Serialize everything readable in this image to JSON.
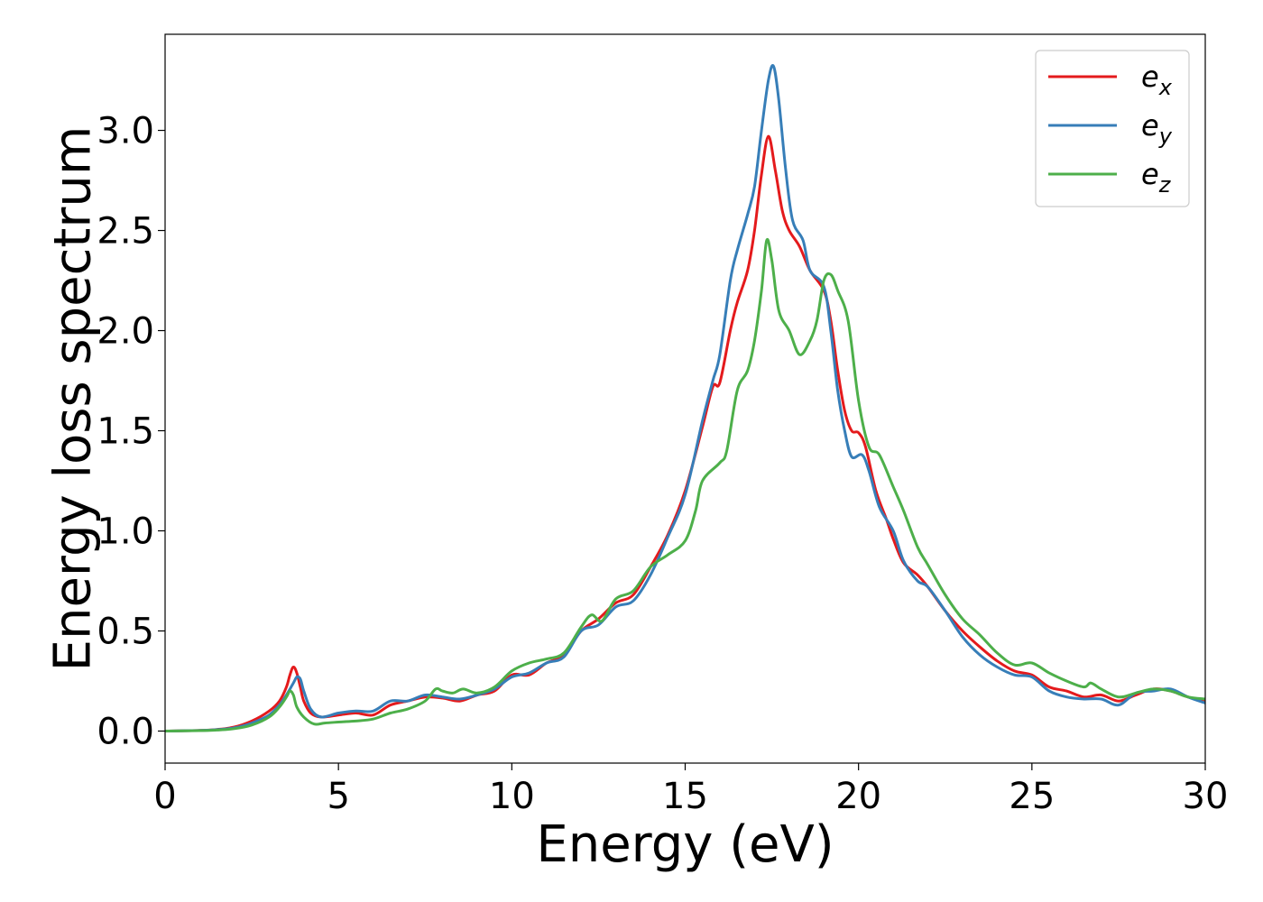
{
  "chart_data": {
    "type": "line",
    "title": "",
    "xlabel": "Energy (eV)",
    "ylabel": "Energy loss spectrum",
    "xlim": [
      0,
      30
    ],
    "ylim": [
      -0.16,
      3.48
    ],
    "xticks": [
      0,
      5,
      10,
      15,
      20,
      25,
      30
    ],
    "xtick_labels": [
      "0",
      "5",
      "10",
      "15",
      "20",
      "25",
      "30"
    ],
    "yticks": [
      0.0,
      0.5,
      1.0,
      1.5,
      2.0,
      2.5,
      3.0
    ],
    "ytick_labels": [
      "0.0",
      "0.5",
      "1.0",
      "1.5",
      "2.0",
      "2.5",
      "3.0"
    ],
    "grid": false,
    "legend_position": "top-right",
    "series": [
      {
        "name": "e_x",
        "base": "e",
        "sub": "x",
        "color": "#e41a1c",
        "points": [
          [
            0,
            0
          ],
          [
            1,
            0.003
          ],
          [
            1.5,
            0.008
          ],
          [
            2,
            0.02
          ],
          [
            2.5,
            0.05
          ],
          [
            3,
            0.1
          ],
          [
            3.3,
            0.15
          ],
          [
            3.5,
            0.22
          ],
          [
            3.6,
            0.28
          ],
          [
            3.7,
            0.32
          ],
          [
            3.8,
            0.29
          ],
          [
            3.9,
            0.22
          ],
          [
            4,
            0.15
          ],
          [
            4.2,
            0.09
          ],
          [
            4.5,
            0.07
          ],
          [
            5,
            0.08
          ],
          [
            5.5,
            0.09
          ],
          [
            6,
            0.08
          ],
          [
            6.5,
            0.13
          ],
          [
            7,
            0.15
          ],
          [
            7.5,
            0.17
          ],
          [
            8,
            0.165
          ],
          [
            8.5,
            0.15
          ],
          [
            9,
            0.18
          ],
          [
            9.5,
            0.2
          ],
          [
            10,
            0.28
          ],
          [
            10.5,
            0.28
          ],
          [
            11,
            0.34
          ],
          [
            11.5,
            0.38
          ],
          [
            12,
            0.5
          ],
          [
            12.5,
            0.56
          ],
          [
            13,
            0.64
          ],
          [
            13.5,
            0.68
          ],
          [
            14,
            0.82
          ],
          [
            14.5,
            0.98
          ],
          [
            15,
            1.2
          ],
          [
            15.5,
            1.52
          ],
          [
            15.8,
            1.72
          ],
          [
            16,
            1.74
          ],
          [
            16.3,
            2.0
          ],
          [
            16.5,
            2.14
          ],
          [
            16.8,
            2.3
          ],
          [
            17,
            2.5
          ],
          [
            17.2,
            2.78
          ],
          [
            17.4,
            2.97
          ],
          [
            17.6,
            2.8
          ],
          [
            17.8,
            2.6
          ],
          [
            18,
            2.5
          ],
          [
            18.3,
            2.42
          ],
          [
            18.6,
            2.3
          ],
          [
            19,
            2.2
          ],
          [
            19.2,
            2.05
          ],
          [
            19.4,
            1.8
          ],
          [
            19.6,
            1.6
          ],
          [
            19.8,
            1.5
          ],
          [
            20,
            1.49
          ],
          [
            20.2,
            1.42
          ],
          [
            20.5,
            1.2
          ],
          [
            20.8,
            1.06
          ],
          [
            21,
            0.96
          ],
          [
            21.3,
            0.84
          ],
          [
            21.7,
            0.78
          ],
          [
            22,
            0.72
          ],
          [
            22.5,
            0.6
          ],
          [
            23,
            0.5
          ],
          [
            23.5,
            0.42
          ],
          [
            24,
            0.35
          ],
          [
            24.5,
            0.3
          ],
          [
            25,
            0.28
          ],
          [
            25.5,
            0.22
          ],
          [
            26,
            0.2
          ],
          [
            26.5,
            0.17
          ],
          [
            27,
            0.18
          ],
          [
            27.5,
            0.15
          ],
          [
            28,
            0.18
          ],
          [
            28.5,
            0.21
          ],
          [
            29,
            0.2
          ],
          [
            29.5,
            0.17
          ],
          [
            30,
            0.15
          ]
        ]
      },
      {
        "name": "e_y",
        "base": "e",
        "sub": "y",
        "color": "#377eb8",
        "points": [
          [
            0,
            0
          ],
          [
            1,
            0.003
          ],
          [
            1.5,
            0.007
          ],
          [
            2,
            0.016
          ],
          [
            2.5,
            0.04
          ],
          [
            3,
            0.08
          ],
          [
            3.3,
            0.13
          ],
          [
            3.5,
            0.18
          ],
          [
            3.7,
            0.24
          ],
          [
            3.8,
            0.27
          ],
          [
            3.9,
            0.26
          ],
          [
            4,
            0.2
          ],
          [
            4.2,
            0.11
          ],
          [
            4.5,
            0.07
          ],
          [
            5,
            0.09
          ],
          [
            5.5,
            0.1
          ],
          [
            6,
            0.1
          ],
          [
            6.5,
            0.15
          ],
          [
            7,
            0.15
          ],
          [
            7.5,
            0.18
          ],
          [
            8,
            0.17
          ],
          [
            8.5,
            0.16
          ],
          [
            9,
            0.18
          ],
          [
            9.5,
            0.21
          ],
          [
            10,
            0.27
          ],
          [
            10.5,
            0.29
          ],
          [
            11,
            0.34
          ],
          [
            11.5,
            0.37
          ],
          [
            12,
            0.5
          ],
          [
            12.5,
            0.53
          ],
          [
            13,
            0.62
          ],
          [
            13.5,
            0.65
          ],
          [
            14,
            0.78
          ],
          [
            14.5,
            0.97
          ],
          [
            15,
            1.18
          ],
          [
            15.5,
            1.55
          ],
          [
            15.8,
            1.75
          ],
          [
            16,
            1.88
          ],
          [
            16.3,
            2.25
          ],
          [
            16.5,
            2.4
          ],
          [
            16.8,
            2.58
          ],
          [
            17,
            2.72
          ],
          [
            17.2,
            3.0
          ],
          [
            17.4,
            3.25
          ],
          [
            17.55,
            3.32
          ],
          [
            17.7,
            3.15
          ],
          [
            17.9,
            2.8
          ],
          [
            18.1,
            2.55
          ],
          [
            18.4,
            2.45
          ],
          [
            18.6,
            2.3
          ],
          [
            19,
            2.22
          ],
          [
            19.2,
            2.0
          ],
          [
            19.4,
            1.7
          ],
          [
            19.6,
            1.5
          ],
          [
            19.8,
            1.37
          ],
          [
            20.1,
            1.38
          ],
          [
            20.3,
            1.3
          ],
          [
            20.6,
            1.12
          ],
          [
            21,
            1.0
          ],
          [
            21.3,
            0.85
          ],
          [
            21.7,
            0.75
          ],
          [
            22,
            0.72
          ],
          [
            22.5,
            0.6
          ],
          [
            23,
            0.47
          ],
          [
            23.5,
            0.38
          ],
          [
            24,
            0.32
          ],
          [
            24.5,
            0.28
          ],
          [
            25,
            0.27
          ],
          [
            25.5,
            0.2
          ],
          [
            26,
            0.17
          ],
          [
            26.5,
            0.16
          ],
          [
            27,
            0.16
          ],
          [
            27.5,
            0.13
          ],
          [
            28,
            0.19
          ],
          [
            28.5,
            0.2
          ],
          [
            29,
            0.21
          ],
          [
            29.5,
            0.17
          ],
          [
            30,
            0.14
          ]
        ]
      },
      {
        "name": "e_z",
        "base": "e",
        "sub": "z",
        "color": "#4daf4a",
        "points": [
          [
            0,
            0
          ],
          [
            1,
            0.002
          ],
          [
            1.5,
            0.005
          ],
          [
            2,
            0.012
          ],
          [
            2.5,
            0.03
          ],
          [
            3,
            0.07
          ],
          [
            3.3,
            0.12
          ],
          [
            3.5,
            0.17
          ],
          [
            3.6,
            0.2
          ],
          [
            3.7,
            0.18
          ],
          [
            3.8,
            0.12
          ],
          [
            4,
            0.07
          ],
          [
            4.3,
            0.035
          ],
          [
            4.6,
            0.04
          ],
          [
            5,
            0.045
          ],
          [
            5.5,
            0.05
          ],
          [
            6,
            0.06
          ],
          [
            6.5,
            0.09
          ],
          [
            7,
            0.11
          ],
          [
            7.5,
            0.15
          ],
          [
            7.8,
            0.21
          ],
          [
            8,
            0.2
          ],
          [
            8.3,
            0.19
          ],
          [
            8.6,
            0.21
          ],
          [
            9,
            0.19
          ],
          [
            9.5,
            0.22
          ],
          [
            10,
            0.3
          ],
          [
            10.5,
            0.34
          ],
          [
            11,
            0.36
          ],
          [
            11.5,
            0.39
          ],
          [
            12,
            0.52
          ],
          [
            12.3,
            0.58
          ],
          [
            12.6,
            0.55
          ],
          [
            13,
            0.66
          ],
          [
            13.5,
            0.7
          ],
          [
            14,
            0.82
          ],
          [
            14.5,
            0.88
          ],
          [
            15,
            0.95
          ],
          [
            15.3,
            1.1
          ],
          [
            15.5,
            1.25
          ],
          [
            16,
            1.34
          ],
          [
            16.2,
            1.4
          ],
          [
            16.5,
            1.7
          ],
          [
            16.8,
            1.8
          ],
          [
            17,
            1.95
          ],
          [
            17.2,
            2.2
          ],
          [
            17.35,
            2.45
          ],
          [
            17.5,
            2.35
          ],
          [
            17.7,
            2.1
          ],
          [
            18,
            2.0
          ],
          [
            18.3,
            1.88
          ],
          [
            18.6,
            1.95
          ],
          [
            18.8,
            2.05
          ],
          [
            19,
            2.25
          ],
          [
            19.2,
            2.28
          ],
          [
            19.4,
            2.2
          ],
          [
            19.7,
            2.05
          ],
          [
            20,
            1.65
          ],
          [
            20.3,
            1.42
          ],
          [
            20.6,
            1.38
          ],
          [
            21,
            1.22
          ],
          [
            21.3,
            1.1
          ],
          [
            21.7,
            0.92
          ],
          [
            22,
            0.83
          ],
          [
            22.5,
            0.68
          ],
          [
            23,
            0.56
          ],
          [
            23.5,
            0.48
          ],
          [
            24,
            0.39
          ],
          [
            24.5,
            0.33
          ],
          [
            25,
            0.34
          ],
          [
            25.5,
            0.29
          ],
          [
            26,
            0.25
          ],
          [
            26.5,
            0.22
          ],
          [
            26.7,
            0.24
          ],
          [
            27,
            0.21
          ],
          [
            27.5,
            0.17
          ],
          [
            28,
            0.19
          ],
          [
            28.5,
            0.21
          ],
          [
            29,
            0.2
          ],
          [
            29.5,
            0.17
          ],
          [
            30,
            0.16
          ]
        ]
      }
    ]
  }
}
